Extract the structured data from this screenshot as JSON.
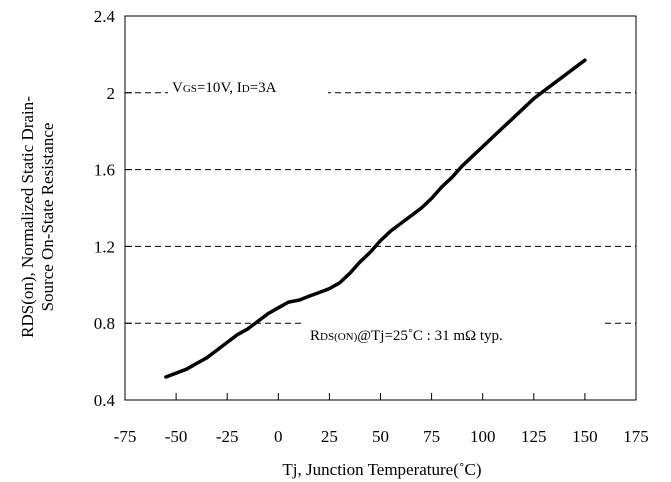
{
  "chart_data": {
    "type": "line",
    "title": "",
    "xlabel": "Tj, Junction Temperature(˚C)",
    "ylabel_line1": "RDS(on), Normalized Static Drain-",
    "ylabel_line2": "Source On-State Resistance",
    "xlim": [
      -75,
      175
    ],
    "ylim": [
      0.4,
      2.4
    ],
    "x_ticks": [
      "-75",
      "-50",
      "-25",
      "0",
      "25",
      "50",
      "75",
      "100",
      "125",
      "150",
      "175"
    ],
    "y_ticks": [
      "0.4",
      "0.8",
      "1.2",
      "1.6",
      "2",
      "2.4"
    ],
    "grid": "horizontal-dashed",
    "series": [
      {
        "color": "#000000",
        "points": [
          [
            -55,
            0.52
          ],
          [
            -50,
            0.54
          ],
          [
            -45,
            0.56
          ],
          [
            -40,
            0.59
          ],
          [
            -35,
            0.62
          ],
          [
            -30,
            0.66
          ],
          [
            -25,
            0.7
          ],
          [
            -20,
            0.74
          ],
          [
            -15,
            0.77
          ],
          [
            -10,
            0.81
          ],
          [
            -5,
            0.85
          ],
          [
            0,
            0.88
          ],
          [
            5,
            0.91
          ],
          [
            10,
            0.92
          ],
          [
            15,
            0.94
          ],
          [
            20,
            0.96
          ],
          [
            25,
            0.98
          ],
          [
            30,
            1.01
          ],
          [
            35,
            1.06
          ],
          [
            40,
            1.12
          ],
          [
            45,
            1.17
          ],
          [
            50,
            1.23
          ],
          [
            55,
            1.28
          ],
          [
            60,
            1.32
          ],
          [
            65,
            1.36
          ],
          [
            70,
            1.4
          ],
          [
            75,
            1.45
          ],
          [
            80,
            1.51
          ],
          [
            85,
            1.56
          ],
          [
            90,
            1.62
          ],
          [
            95,
            1.67
          ],
          [
            100,
            1.72
          ],
          [
            105,
            1.77
          ],
          [
            110,
            1.82
          ],
          [
            115,
            1.87
          ],
          [
            120,
            1.92
          ],
          [
            125,
            1.97
          ],
          [
            130,
            2.01
          ],
          [
            135,
            2.05
          ],
          [
            140,
            2.09
          ],
          [
            145,
            2.13
          ],
          [
            150,
            2.17
          ]
        ]
      }
    ],
    "annotations": {
      "condition": {
        "v_symbol": "V",
        "v_sub": "GS",
        "v_value": "=10V, I",
        "i_sub": "D",
        "i_value": "=3A"
      },
      "rating": {
        "r_symbol": "R",
        "r_sub": "DS(ON)",
        "text": "@Tj=25˚C : 31 mΩ  typ."
      }
    }
  }
}
